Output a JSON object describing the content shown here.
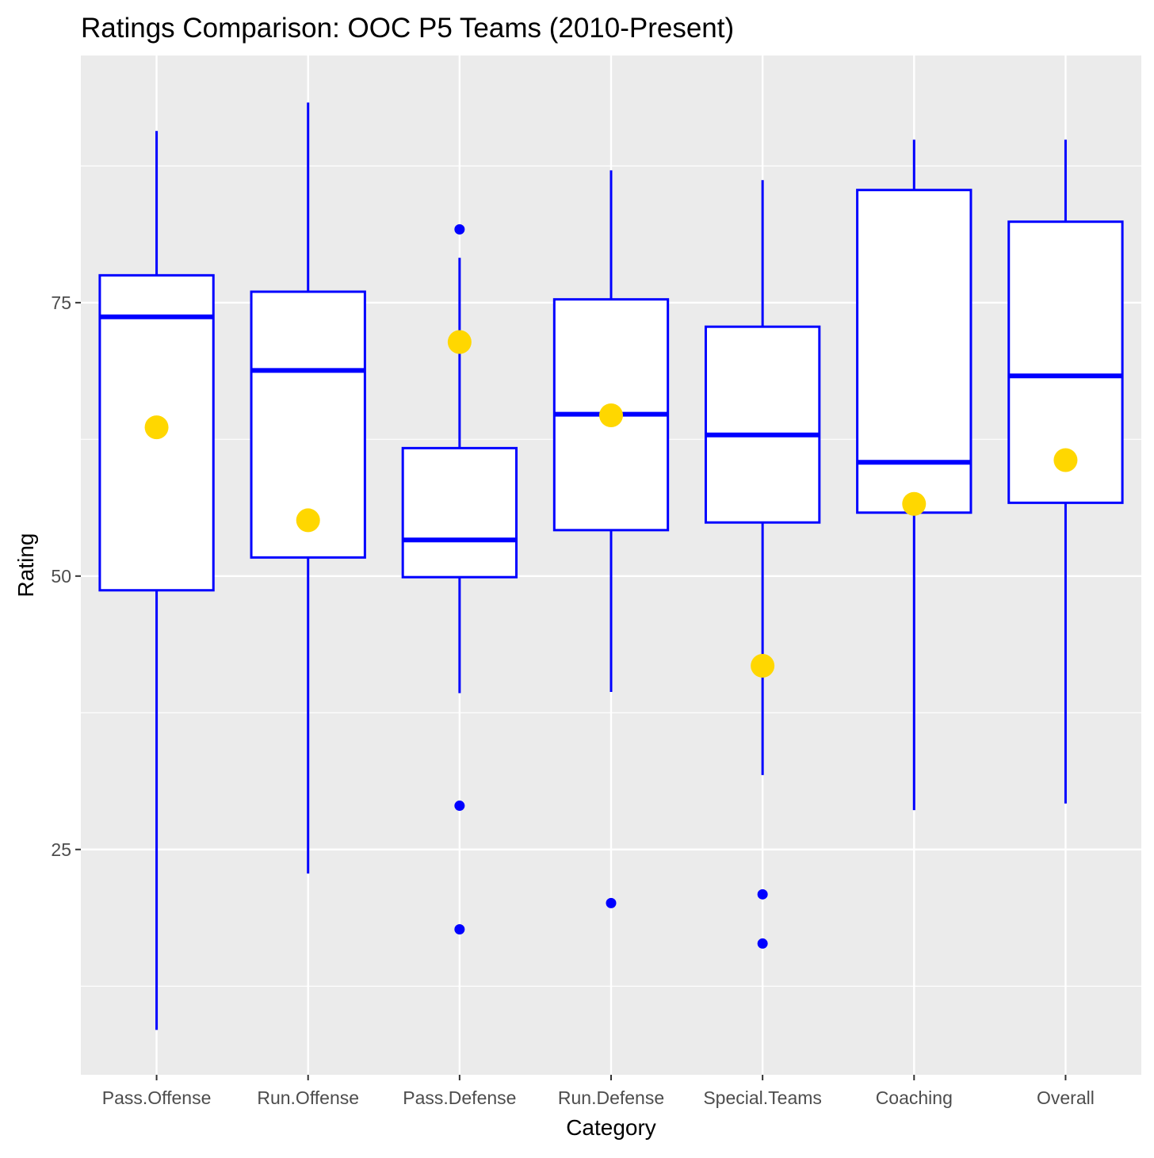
{
  "chart_data": {
    "type": "boxplot",
    "title": "Ratings Comparison: OOC P5 Teams (2010-Present)",
    "xlabel": "Category",
    "ylabel": "Rating",
    "ylim": [
      4.4,
      97.6
    ],
    "yticks": [
      25,
      50,
      75
    ],
    "ytick_labels": [
      "25",
      "50",
      "75"
    ],
    "grid": true,
    "colors": {
      "box": "#0000FF",
      "highlight": "#FFD700",
      "panel": "#EBEBEB",
      "grid": "#FFFFFF"
    },
    "categories": [
      "Pass.Offense",
      "Run.Offense",
      "Pass.Defense",
      "Run.Defense",
      "Special.Teams",
      "Coaching",
      "Overall"
    ],
    "boxes": [
      {
        "whisker_low": 8.5,
        "q1": 48.7,
        "median": 73.7,
        "q3": 77.5,
        "whisker_high": 90.7,
        "outliers": [],
        "highlight": 63.6
      },
      {
        "whisker_low": 22.8,
        "q1": 51.7,
        "median": 68.8,
        "q3": 76.0,
        "whisker_high": 93.3,
        "outliers": [],
        "highlight": 55.1
      },
      {
        "whisker_low": 39.3,
        "q1": 49.9,
        "median": 53.3,
        "q3": 61.7,
        "whisker_high": 79.1,
        "outliers": [
          81.7,
          29.0,
          17.7
        ],
        "highlight": 71.4
      },
      {
        "whisker_low": 39.4,
        "q1": 54.2,
        "median": 64.8,
        "q3": 75.3,
        "whisker_high": 87.1,
        "outliers": [
          20.1
        ],
        "highlight": 64.7
      },
      {
        "whisker_low": 31.8,
        "q1": 54.9,
        "median": 62.9,
        "q3": 72.8,
        "whisker_high": 86.2,
        "outliers": [
          20.9,
          16.4
        ],
        "highlight": 41.8
      },
      {
        "whisker_low": 28.6,
        "q1": 55.8,
        "median": 60.4,
        "q3": 85.3,
        "whisker_high": 89.9,
        "outliers": [],
        "highlight": 56.6
      },
      {
        "whisker_low": 29.2,
        "q1": 56.7,
        "median": 68.3,
        "q3": 82.4,
        "whisker_high": 89.9,
        "outliers": [],
        "highlight": 60.6
      }
    ]
  }
}
